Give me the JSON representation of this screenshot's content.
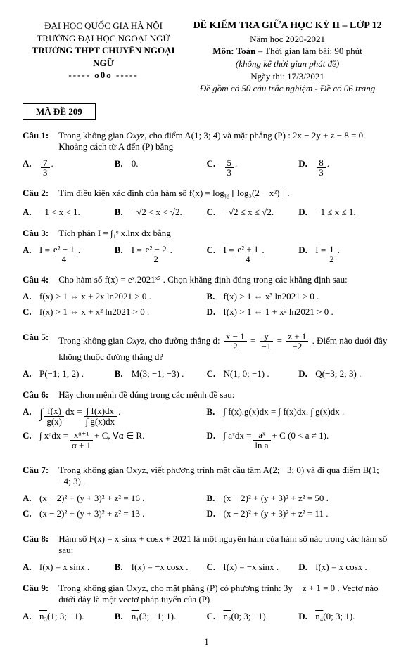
{
  "header": {
    "left1": "ĐẠI HỌC QUỐC GIA HÀ NỘI",
    "left2": "TRƯỜNG ĐẠI HỌC NGOẠI NGỮ",
    "left3": "TRƯỜNG THPT CHUYÊN NGOẠI NGỮ",
    "left4": "----- o0o -----",
    "right1": "ĐỀ KIỂM TRA GIỮA HỌC KỲ II – LỚP 12",
    "right2": "Năm học 2020-2021",
    "right3a": "Môn: Toán",
    "right3b": " – Thời gian làm bài: 90 phút",
    "right4": "(không kể thời gian phát đề)",
    "right5": "Ngày thi: 17/3/2021",
    "right6": "Đề gồm có 50 câu trắc nghiệm - Đề có 06 trang",
    "examcode": "MÃ ĐỀ 209"
  },
  "labels": {
    "A": "A.",
    "B": "B.",
    "C": "C.",
    "D": "D."
  },
  "q1": {
    "label": "Câu 1:",
    "text1": "Trong không gian ",
    "text2": ", cho điểm  A(1; 3; 4)  và mặt phẳng  (P) : 2x − 2y + z − 8 = 0.  Khoảng cách từ A đến (P) bằng",
    "oxyz": "Oxyz",
    "a_num": "7",
    "a_den": "3",
    "b": "0.",
    "c_num": "5",
    "c_den": "3",
    "d_num": "8",
    "d_den": "3"
  },
  "q2": {
    "label": "Câu 2:",
    "text": "Tìm điều kiện xác định của hàm số  f(x) = log",
    "sub": "⅓",
    "after": " [ log₃(2 − x²) ] .",
    "a": "−1 < x < 1.",
    "b": "−√2 < x < √2.",
    "c": "−√2 ≤ x ≤ √2.",
    "d": "−1 ≤ x ≤ 1."
  },
  "q3": {
    "label": "Câu 3:",
    "text": "Tích phân  I = ∫₁ᵉ x.lnx dx  bằng",
    "a_num": "e² − 1",
    "a_den": "4",
    "b_num": "e² − 2",
    "b_den": "2",
    "c_num": "e² + 1",
    "c_den": "4",
    "d_num": "1",
    "d_den": "2",
    "pre": "I ="
  },
  "q4": {
    "label": "Câu 4:",
    "text": "Cho hàm số  f(x) = eˣ.2021ˣ² . Chọn khẳng định đúng trong các khẳng định sau:",
    "a": "f(x) > 1 ⇔ x + 2x ln2021 > 0 .",
    "b": "f(x) > 1 ⇔ x³ ln2021 > 0 .",
    "c": "f(x) > 1 ⇔ x + x² ln2021 > 0 .",
    "d": "f(x) > 1 ⇔ 1 + x² ln2021 > 0 ."
  },
  "q5": {
    "label": "Câu 5:",
    "t1": "Trong không gian ",
    "oxyz": "Oxyz",
    "t2": ", cho đường thẳng d: ",
    "f1n": "x − 1",
    "f1d": "2",
    "eq": " = ",
    "f2n": "y",
    "f2d": "−1",
    "f3n": "z + 1",
    "f3d": "−2",
    "t3": " . Điểm nào dưới đây không thuộc đường thẳng d?",
    "a": "P(−1; 1; 2) .",
    "b": "M(3; −1; −3) .",
    "c": "N(1; 0; −1) .",
    "d": "Q(−3; 2; 3) ."
  },
  "q6": {
    "label": "Câu 6:",
    "text": "Hãy chọn mệnh đề đúng trong các mệnh đề sau:",
    "a_lhs_n": "f(x)",
    "a_lhs_d": "g(x)",
    "a_rhs_n": "∫ f(x)dx",
    "a_rhs_d": "∫ g(x)dx",
    "b": "∫ f(x).g(x)dx = ∫ f(x)dx. ∫ g(x)dx .",
    "c_lhs": "∫ xᵅdx = ",
    "c_r_n": "xᵅ⁺¹",
    "c_r_d": "α + 1",
    "c_after": " + C, ∀α ∈ R.",
    "d_lhs": "∫ aˣdx = ",
    "d_r_n": "aˣ",
    "d_r_d": "ln a",
    "d_after": " + C (0 < a ≠ 1)."
  },
  "q7": {
    "label": "Câu 7:",
    "t1": "Trong không gian Oxyz, viết phương trình mặt cầu tâm  A(2; −3; 0) và đi qua điểm  B(1; −4; 3) .",
    "a": "(x − 2)² + (y + 3)² + z² = 16 .",
    "b": "(x − 2)² + (y + 3)² + z² = 50 .",
    "c": "(x − 2)² + (y + 3)² + z² = 13 .",
    "d": "(x − 2)² + (y + 3)² + z² = 11 ."
  },
  "q8": {
    "label": "Câu 8:",
    "text": "Hàm số  F(x) = x sinx + cosx + 2021 là một nguyên hàm của hàm số nào trong các hàm số sau:",
    "a": "f(x) = x sinx .",
    "b": "f(x) = −x cosx .",
    "c": "f(x) = −x sinx .",
    "d": "f(x) = x cosx ."
  },
  "q9": {
    "label": "Câu 9:",
    "text": "Trong không gian Oxyz, cho mặt phẳng (P) có phương trình:  3y − z + 1 = 0 . Vectơ nào dưới đây là một vectơ pháp tuyến của (P)",
    "a_v": "n₃",
    "a_c": "(1; 3; −1).",
    "b_v": "n₁",
    "b_c": "(3; −1; 1).",
    "c_v": "n₂",
    "c_c": "(0; 3; −1).",
    "d_v": "n₄",
    "d_c": "(0; 3; 1)."
  },
  "page": "1"
}
